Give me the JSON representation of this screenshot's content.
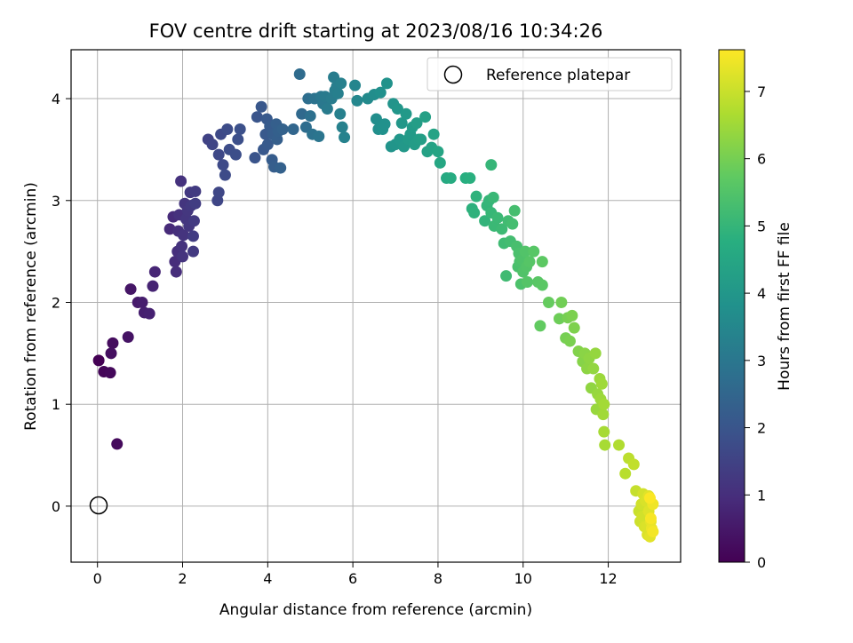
{
  "chart_data": {
    "type": "scatter",
    "title": "FOV centre drift starting at 2023/08/16 10:34:26",
    "xlabel": "Angular distance from reference (arcmin)",
    "ylabel": "Rotation from reference (arcmin)",
    "xlim": [
      -0.62,
      13.7
    ],
    "ylim": [
      -0.55,
      4.48
    ],
    "xticks": [
      "0",
      "2",
      "4",
      "6",
      "8",
      "10",
      "12"
    ],
    "yticks": [
      "0",
      "1",
      "2",
      "3",
      "4"
    ],
    "grid": true,
    "colormap": "viridis",
    "colorbar": {
      "label": "Hours from first FF file",
      "range": [
        0,
        7.62
      ],
      "ticks": [
        "0",
        "1",
        "2",
        "3",
        "4",
        "5",
        "6",
        "7"
      ]
    },
    "legend": {
      "placement": "top-right",
      "entries": [
        {
          "label": "Reference platepar",
          "marker": "open-circle"
        }
      ]
    },
    "reference_point": {
      "x": 0,
      "y": 0
    },
    "series": [
      {
        "columns": [
          "x",
          "y",
          "hours"
        ],
        "points": [
          [
            0.03,
            1.43,
            0.0
          ],
          [
            0.15,
            1.32,
            0.1
          ],
          [
            0.3,
            1.31,
            0.15
          ],
          [
            0.46,
            0.61,
            0.2
          ],
          [
            0.36,
            1.6,
            0.25
          ],
          [
            0.32,
            1.5,
            0.3
          ],
          [
            0.72,
            1.66,
            0.4
          ],
          [
            0.78,
            2.13,
            0.45
          ],
          [
            0.95,
            2.0,
            0.55
          ],
          [
            1.05,
            2.0,
            0.6
          ],
          [
            1.1,
            1.9,
            0.65
          ],
          [
            1.22,
            1.89,
            0.7
          ],
          [
            1.3,
            2.16,
            0.75
          ],
          [
            1.35,
            2.3,
            0.8
          ],
          [
            1.7,
            2.72,
            0.9
          ],
          [
            1.78,
            2.84,
            0.92
          ],
          [
            1.82,
            2.4,
            0.95
          ],
          [
            1.85,
            2.3,
            0.98
          ],
          [
            1.88,
            2.5,
            1.0
          ],
          [
            1.9,
            2.7,
            1.02
          ],
          [
            1.92,
            2.86,
            1.05
          ],
          [
            1.96,
            3.19,
            1.08
          ],
          [
            1.98,
            2.55,
            1.1
          ],
          [
            2.0,
            2.45,
            1.12
          ],
          [
            2.02,
            2.66,
            1.14
          ],
          [
            2.05,
            2.97,
            1.16
          ],
          [
            2.08,
            2.82,
            1.18
          ],
          [
            2.12,
            2.9,
            1.2
          ],
          [
            2.15,
            2.75,
            1.22
          ],
          [
            2.18,
            3.08,
            1.24
          ],
          [
            2.2,
            2.95,
            1.26
          ],
          [
            2.25,
            2.5,
            1.28
          ],
          [
            2.27,
            2.8,
            1.3
          ],
          [
            2.3,
            3.09,
            1.32
          ],
          [
            2.25,
            2.65,
            1.34
          ],
          [
            2.3,
            2.97,
            1.36
          ],
          [
            2.6,
            3.6,
            1.5
          ],
          [
            2.7,
            3.55,
            1.55
          ],
          [
            2.82,
            3.0,
            1.6
          ],
          [
            2.85,
            3.08,
            1.62
          ],
          [
            2.85,
            3.45,
            1.65
          ],
          [
            2.9,
            3.65,
            1.68
          ],
          [
            2.95,
            3.35,
            1.7
          ],
          [
            3.0,
            3.25,
            1.72
          ],
          [
            3.05,
            3.7,
            1.75
          ],
          [
            3.1,
            3.5,
            1.78
          ],
          [
            3.25,
            3.45,
            1.8
          ],
          [
            3.3,
            3.6,
            1.82
          ],
          [
            3.35,
            3.7,
            1.85
          ],
          [
            3.7,
            3.42,
            1.95
          ],
          [
            3.75,
            3.82,
            2.0
          ],
          [
            3.85,
            3.92,
            2.05
          ],
          [
            3.9,
            3.5,
            2.08
          ],
          [
            3.95,
            3.65,
            2.1
          ],
          [
            3.98,
            3.8,
            2.12
          ],
          [
            4.0,
            3.55,
            2.15
          ],
          [
            4.05,
            3.73,
            2.18
          ],
          [
            4.1,
            3.4,
            2.2
          ],
          [
            4.12,
            3.65,
            2.22
          ],
          [
            4.15,
            3.33,
            2.25
          ],
          [
            4.2,
            3.75,
            2.28
          ],
          [
            4.22,
            3.6,
            2.3
          ],
          [
            4.25,
            3.68,
            2.32
          ],
          [
            4.3,
            3.32,
            2.35
          ],
          [
            4.35,
            3.7,
            2.38
          ],
          [
            4.6,
            3.7,
            2.5
          ],
          [
            4.8,
            3.85,
            2.6
          ],
          [
            4.75,
            4.24,
            2.65
          ],
          [
            4.9,
            3.72,
            2.7
          ],
          [
            4.95,
            4.0,
            2.75
          ],
          [
            5.0,
            3.83,
            2.8
          ],
          [
            5.05,
            3.65,
            2.85
          ],
          [
            5.1,
            4.0,
            2.9
          ],
          [
            5.2,
            3.63,
            2.95
          ],
          [
            5.25,
            4.02,
            3.0
          ],
          [
            5.3,
            3.95,
            3.05
          ],
          [
            5.35,
            4.02,
            3.1
          ],
          [
            5.4,
            3.9,
            3.12
          ],
          [
            5.5,
            4.0,
            3.15
          ],
          [
            5.55,
            4.21,
            3.18
          ],
          [
            5.58,
            4.08,
            3.2
          ],
          [
            5.62,
            4.12,
            3.22
          ],
          [
            5.65,
            4.05,
            3.25
          ],
          [
            5.7,
            3.85,
            3.28
          ],
          [
            5.72,
            4.15,
            3.3
          ],
          [
            5.75,
            3.72,
            3.32
          ],
          [
            5.8,
            3.62,
            3.35
          ],
          [
            6.05,
            4.13,
            3.45
          ],
          [
            6.1,
            3.98,
            3.5
          ],
          [
            6.35,
            4.0,
            3.6
          ],
          [
            6.5,
            4.04,
            3.7
          ],
          [
            6.55,
            3.8,
            3.72
          ],
          [
            6.6,
            3.7,
            3.75
          ],
          [
            6.65,
            4.06,
            3.78
          ],
          [
            6.7,
            3.7,
            3.8
          ],
          [
            6.75,
            3.75,
            3.82
          ],
          [
            6.8,
            4.15,
            3.85
          ],
          [
            6.9,
            3.53,
            3.9
          ],
          [
            6.95,
            3.95,
            3.92
          ],
          [
            7.0,
            3.55,
            3.95
          ],
          [
            7.05,
            3.9,
            3.98
          ],
          [
            7.1,
            3.6,
            4.0
          ],
          [
            7.15,
            3.76,
            4.02
          ],
          [
            7.2,
            3.53,
            4.05
          ],
          [
            7.25,
            3.85,
            4.08
          ],
          [
            7.3,
            3.6,
            4.1
          ],
          [
            7.35,
            3.65,
            4.12
          ],
          [
            7.4,
            3.72,
            4.15
          ],
          [
            7.45,
            3.55,
            4.18
          ],
          [
            7.5,
            3.76,
            4.2
          ],
          [
            7.55,
            3.6,
            4.22
          ],
          [
            7.6,
            3.6,
            4.25
          ],
          [
            7.7,
            3.82,
            4.3
          ],
          [
            7.75,
            3.48,
            4.35
          ],
          [
            7.85,
            3.52,
            4.38
          ],
          [
            7.9,
            3.65,
            4.4
          ],
          [
            8.0,
            3.48,
            4.45
          ],
          [
            8.05,
            3.37,
            4.5
          ],
          [
            8.2,
            3.22,
            4.6
          ],
          [
            8.3,
            3.22,
            4.65
          ],
          [
            8.65,
            3.22,
            4.75
          ],
          [
            8.75,
            3.22,
            4.8
          ],
          [
            8.8,
            2.92,
            4.85
          ],
          [
            8.85,
            2.88,
            4.88
          ],
          [
            8.9,
            3.04,
            4.9
          ],
          [
            9.1,
            2.8,
            4.95
          ],
          [
            9.15,
            2.95,
            4.98
          ],
          [
            9.2,
            3.0,
            5.0
          ],
          [
            9.25,
            3.35,
            5.02
          ],
          [
            9.25,
            2.88,
            5.05
          ],
          [
            9.3,
            3.03,
            5.08
          ],
          [
            9.32,
            2.75,
            5.1
          ],
          [
            9.4,
            2.83,
            5.12
          ],
          [
            9.5,
            2.72,
            5.15
          ],
          [
            9.55,
            2.58,
            5.18
          ],
          [
            9.6,
            2.26,
            5.2
          ],
          [
            9.65,
            2.8,
            5.22
          ],
          [
            9.7,
            2.6,
            5.25
          ],
          [
            9.75,
            2.77,
            5.28
          ],
          [
            9.8,
            2.9,
            5.3
          ],
          [
            9.85,
            2.55,
            5.32
          ],
          [
            9.88,
            2.35,
            5.35
          ],
          [
            9.9,
            2.48,
            5.38
          ],
          [
            9.92,
            2.4,
            5.4
          ],
          [
            9.95,
            2.18,
            5.42
          ],
          [
            9.98,
            2.42,
            5.45
          ],
          [
            10.0,
            2.3,
            5.48
          ],
          [
            10.05,
            2.5,
            5.5
          ],
          [
            10.08,
            2.35,
            5.52
          ],
          [
            10.1,
            2.2,
            5.55
          ],
          [
            10.15,
            2.4,
            5.58
          ],
          [
            10.25,
            2.5,
            5.6
          ],
          [
            10.35,
            2.2,
            5.62
          ],
          [
            10.45,
            2.17,
            5.65
          ],
          [
            10.45,
            2.4,
            5.68
          ],
          [
            10.4,
            1.77,
            5.75
          ],
          [
            10.6,
            2.0,
            5.8
          ],
          [
            10.85,
            1.84,
            5.9
          ],
          [
            10.9,
            2.0,
            5.95
          ],
          [
            11.0,
            1.65,
            6.0
          ],
          [
            11.05,
            1.85,
            6.02
          ],
          [
            11.1,
            1.62,
            6.05
          ],
          [
            11.15,
            1.87,
            6.08
          ],
          [
            11.2,
            1.75,
            6.1
          ],
          [
            11.3,
            1.52,
            6.15
          ],
          [
            11.4,
            1.42,
            6.2
          ],
          [
            11.45,
            1.5,
            6.25
          ],
          [
            11.5,
            1.35,
            6.28
          ],
          [
            11.55,
            1.45,
            6.3
          ],
          [
            11.6,
            1.16,
            6.32
          ],
          [
            11.65,
            1.35,
            6.35
          ],
          [
            11.7,
            1.5,
            6.38
          ],
          [
            11.75,
            1.1,
            6.4
          ],
          [
            11.72,
            0.95,
            6.42
          ],
          [
            11.8,
            1.25,
            6.45
          ],
          [
            11.82,
            1.05,
            6.48
          ],
          [
            11.85,
            1.2,
            6.5
          ],
          [
            11.88,
            0.9,
            6.52
          ],
          [
            11.9,
            1.0,
            6.55
          ],
          [
            11.9,
            0.73,
            6.58
          ],
          [
            11.92,
            0.6,
            6.6
          ],
          [
            12.25,
            0.6,
            6.7
          ],
          [
            12.4,
            0.32,
            6.8
          ],
          [
            12.48,
            0.47,
            6.85
          ],
          [
            12.6,
            0.41,
            6.9
          ],
          [
            12.65,
            0.15,
            6.95
          ],
          [
            12.72,
            -0.05,
            7.0
          ],
          [
            12.75,
            -0.15,
            7.05
          ],
          [
            12.78,
            0.02,
            7.08
          ],
          [
            12.8,
            -0.1,
            7.1
          ],
          [
            12.82,
            0.12,
            7.12
          ],
          [
            12.85,
            -0.2,
            7.15
          ],
          [
            12.88,
            0.05,
            7.18
          ],
          [
            12.9,
            -0.2,
            7.2
          ],
          [
            12.92,
            -0.28,
            7.22
          ],
          [
            12.95,
            -0.05,
            7.25
          ],
          [
            12.95,
            0.1,
            7.28
          ],
          [
            12.98,
            -0.3,
            7.3
          ],
          [
            13.0,
            -0.15,
            7.35
          ],
          [
            13.02,
            -0.22,
            7.4
          ],
          [
            13.05,
            0.02,
            7.45
          ],
          [
            13.05,
            -0.25,
            7.5
          ],
          [
            13.0,
            -0.12,
            7.55
          ],
          [
            12.98,
            0.08,
            7.6
          ]
        ]
      }
    ]
  }
}
